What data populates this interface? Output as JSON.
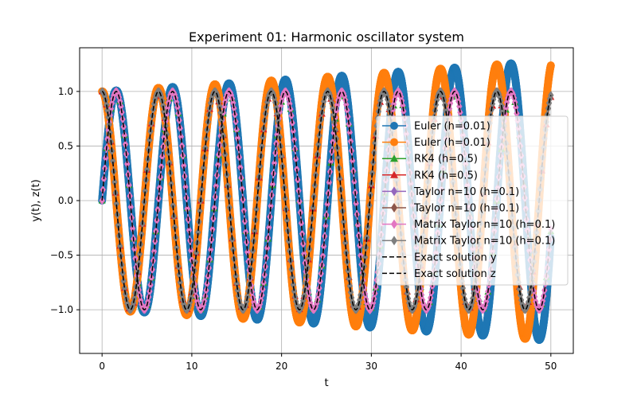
{
  "chart_data": {
    "type": "line",
    "title": "Experiment 01: Harmonic oscillator system",
    "xlabel": "t",
    "ylabel": "y(t), z(t)",
    "xlim": [
      -2.5,
      52.5
    ],
    "ylim": [
      -1.4,
      1.4
    ],
    "xticks": [
      0,
      10,
      20,
      30,
      40,
      50
    ],
    "yticks": [
      -1.0,
      -0.5,
      0.0,
      0.5,
      1.0
    ],
    "xtick_labels": [
      "0",
      "10",
      "20",
      "30",
      "40",
      "50"
    ],
    "ytick_labels": [
      "−1.0",
      "−0.5",
      "0.0",
      "0.5",
      "1.0"
    ],
    "grid": true,
    "legend_position": "center-right",
    "t_range": [
      0,
      50
    ],
    "series": [
      {
        "name": "Euler (h=0.01)",
        "component": "y",
        "method": "euler",
        "h": 0.01,
        "color": "#1f77b4",
        "marker": "circle"
      },
      {
        "name": "Euler (h=0.01)",
        "component": "z",
        "method": "euler",
        "h": 0.01,
        "color": "#ff7f0e",
        "marker": "circle"
      },
      {
        "name": "RK4 (h=0.5)",
        "component": "y",
        "method": "rk4",
        "h": 0.5,
        "color": "#2ca02c",
        "marker": "triangle"
      },
      {
        "name": "RK4 (h=0.5)",
        "component": "z",
        "method": "rk4",
        "h": 0.5,
        "color": "#d62728",
        "marker": "triangle"
      },
      {
        "name": "Taylor n=10 (h=0.1)",
        "component": "y",
        "method": "exact",
        "h": 0.1,
        "color": "#9467bd",
        "marker": "diamond"
      },
      {
        "name": "Taylor n=10 (h=0.1)",
        "component": "z",
        "method": "exact",
        "h": 0.1,
        "color": "#8c564b",
        "marker": "diamond"
      },
      {
        "name": "Matrix Taylor n=10 (h=0.1)",
        "component": "y",
        "method": "exact",
        "h": 0.1,
        "color": "#e377c2",
        "marker": "diamond"
      },
      {
        "name": "Matrix Taylor n=10 (h=0.1)",
        "component": "z",
        "method": "exact",
        "h": 0.1,
        "color": "#7f7f7f",
        "marker": "diamond"
      },
      {
        "name": "Exact solution y",
        "component": "y",
        "method": "exact",
        "h": 0.05,
        "color": "#000000",
        "marker": "none",
        "dashed": true
      },
      {
        "name": "Exact solution z",
        "component": "z",
        "method": "exact",
        "h": 0.05,
        "color": "#000000",
        "marker": "none",
        "dashed": true
      }
    ]
  }
}
